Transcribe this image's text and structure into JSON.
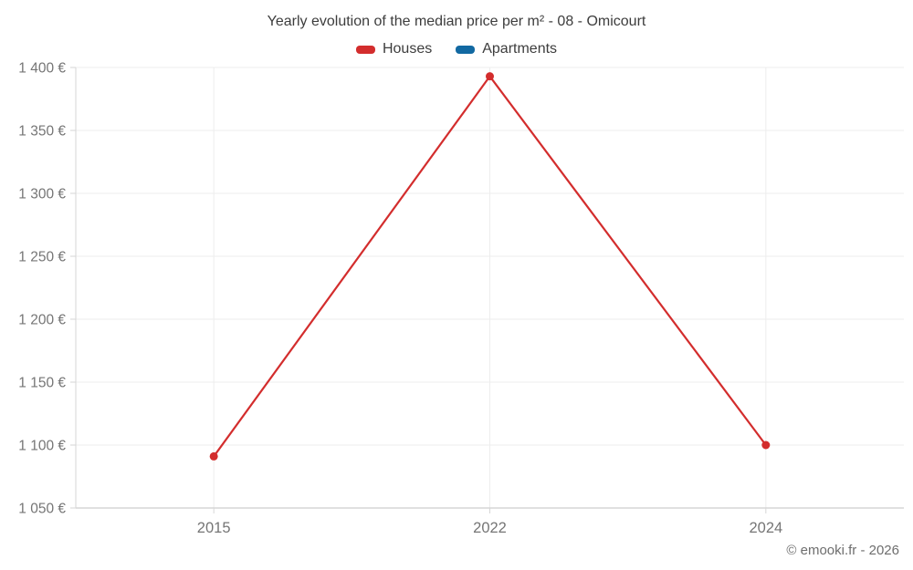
{
  "page": {
    "background": "#ffffff"
  },
  "header": {
    "title": "Yearly evolution of the median price per m² - 08 - Omicourt"
  },
  "legend": {
    "items": [
      {
        "label": "Houses",
        "color": "#d32d2d"
      },
      {
        "label": "Apartments",
        "color": "#1269a2"
      }
    ]
  },
  "footer": {
    "credit": "© emooki.fr - 2026"
  },
  "chart_data": {
    "type": "line",
    "title": "Yearly evolution of the median price per m² - 08 - Omicourt",
    "categories": [
      "2015",
      "2022",
      "2024"
    ],
    "series": [
      {
        "name": "Houses",
        "color": "#d32d2d",
        "values": [
          1091,
          1393,
          1100
        ]
      },
      {
        "name": "Apartments",
        "color": "#1269a2",
        "values": []
      }
    ],
    "xlabel": "",
    "ylabel": "",
    "unit": "€",
    "ylim": [
      1050,
      1400
    ],
    "yticks": [
      1050,
      1100,
      1150,
      1200,
      1250,
      1300,
      1350,
      1400
    ],
    "ytick_labels": [
      "1 050 €",
      "1 100 €",
      "1 150 €",
      "1 200 €",
      "1 250 €",
      "1 300 €",
      "1 350 €",
      "1 400 €"
    ],
    "grid": true,
    "legend_position": "top",
    "colors": {
      "grid_line": "#ededed",
      "axis_line": "#d6d6d6",
      "tick_label": "#757575"
    }
  }
}
